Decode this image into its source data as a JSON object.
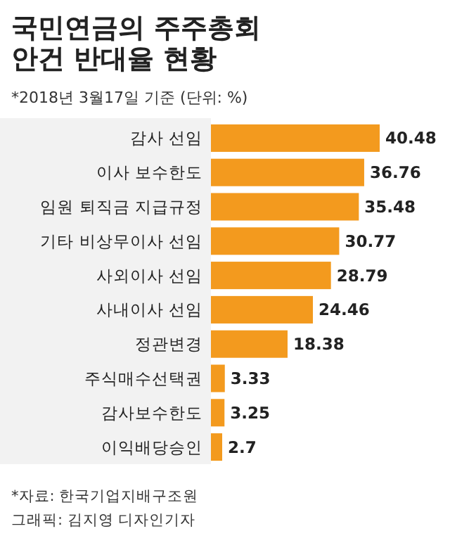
{
  "chart_data": {
    "type": "bar",
    "orientation": "horizontal",
    "title": "국민연금의 주주총회\n안건 반대율 현황",
    "subtitle": "*2018년 3월17일 기준 (단위: %)",
    "categories": [
      "감사 선임",
      "이사 보수한도",
      "임원 퇴직금 지급규정",
      "기타 비상무이사 선임",
      "사외이사 선임",
      "사내이사 선임",
      "정관변경",
      "주식매수선택권",
      "감사보수한도",
      "이익배당승인"
    ],
    "values": [
      40.48,
      36.76,
      35.48,
      30.77,
      28.79,
      24.46,
      18.38,
      3.33,
      3.25,
      2.7
    ],
    "color": "#f39a1e",
    "data_labels": true,
    "annotations": [
      "*자료: 한국기업지배구조원",
      "그래픽: 김지영 디자인기자"
    ]
  }
}
